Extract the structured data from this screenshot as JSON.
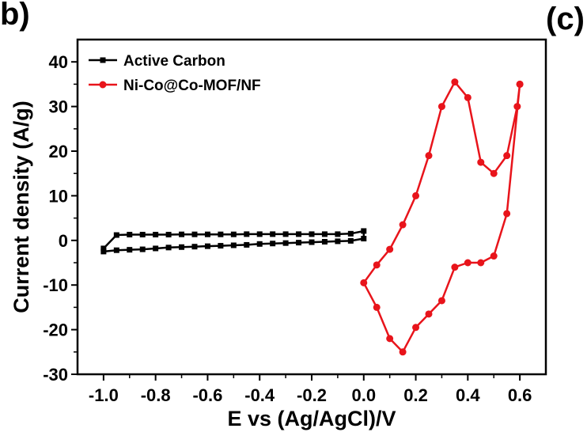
{
  "panel_labels": {
    "left": "b)",
    "right": "(c)"
  },
  "colors": {
    "series_black": "#000000",
    "series_red": "#e8141b",
    "axis": "#000000"
  },
  "chart_data": {
    "type": "line",
    "xlabel": "E vs (Ag/AgCl)/V",
    "ylabel": "Current density (A/g)",
    "xlim": [
      -1.1,
      0.7
    ],
    "ylim": [
      -30,
      45
    ],
    "xticks": [
      -1.0,
      -0.8,
      -0.6,
      -0.4,
      -0.2,
      0.0,
      0.2,
      0.4,
      0.6
    ],
    "xtick_labels": [
      "-1.0",
      "-0.8",
      "-0.6",
      "-0.4",
      "-0.2",
      "0.0",
      "0.2",
      "0.4",
      "0.6"
    ],
    "yticks": [
      -30,
      -20,
      -10,
      0,
      10,
      20,
      30,
      40
    ],
    "ytick_labels": [
      "-30",
      "-20",
      "-10",
      "0",
      "10",
      "20",
      "30",
      "40"
    ],
    "grid": false,
    "legend_position": "top-left",
    "series": [
      {
        "name": "Active Carbon",
        "color": "#000000",
        "marker": "square",
        "x": [
          -1.0,
          -0.95,
          -0.9,
          -0.85,
          -0.8,
          -0.75,
          -0.7,
          -0.65,
          -0.6,
          -0.55,
          -0.5,
          -0.45,
          -0.4,
          -0.35,
          -0.3,
          -0.25,
          -0.2,
          -0.15,
          -0.1,
          -0.05,
          0.0,
          0.0,
          -0.05,
          -0.1,
          -0.15,
          -0.2,
          -0.25,
          -0.3,
          -0.35,
          -0.4,
          -0.45,
          -0.5,
          -0.55,
          -0.6,
          -0.65,
          -0.7,
          -0.75,
          -0.8,
          -0.85,
          -0.9,
          -0.95,
          -1.0
        ],
        "y": [
          -1.8,
          1.2,
          1.3,
          1.3,
          1.3,
          1.3,
          1.35,
          1.35,
          1.35,
          1.35,
          1.35,
          1.4,
          1.4,
          1.4,
          1.4,
          1.4,
          1.4,
          1.4,
          1.4,
          1.5,
          2.1,
          0.4,
          -0.1,
          -0.2,
          -0.3,
          -0.4,
          -0.5,
          -0.6,
          -0.7,
          -0.8,
          -1.0,
          -1.1,
          -1.2,
          -1.3,
          -1.4,
          -1.5,
          -1.6,
          -1.8,
          -2.0,
          -2.1,
          -2.2,
          -2.5
        ]
      },
      {
        "name": "Ni-Co@Co-MOF/NF",
        "color": "#e8141b",
        "marker": "circle",
        "x": [
          0.6,
          0.59,
          0.55,
          0.5,
          0.45,
          0.4,
          0.35,
          0.3,
          0.25,
          0.2,
          0.15,
          0.1,
          0.05,
          0.0,
          0.05,
          0.1,
          0.15,
          0.2,
          0.25,
          0.3,
          0.35,
          0.4,
          0.45,
          0.5,
          0.55,
          0.6
        ],
        "y": [
          35.0,
          30.0,
          19.0,
          15.0,
          17.5,
          32.0,
          35.5,
          30.0,
          19.0,
          10.0,
          3.5,
          -2.0,
          -5.5,
          -9.5,
          -15.0,
          -22.0,
          -25.0,
          -19.5,
          -16.5,
          -13.5,
          -6.0,
          -5.0,
          -5.0,
          -3.5,
          6.0,
          35.0
        ]
      }
    ]
  }
}
